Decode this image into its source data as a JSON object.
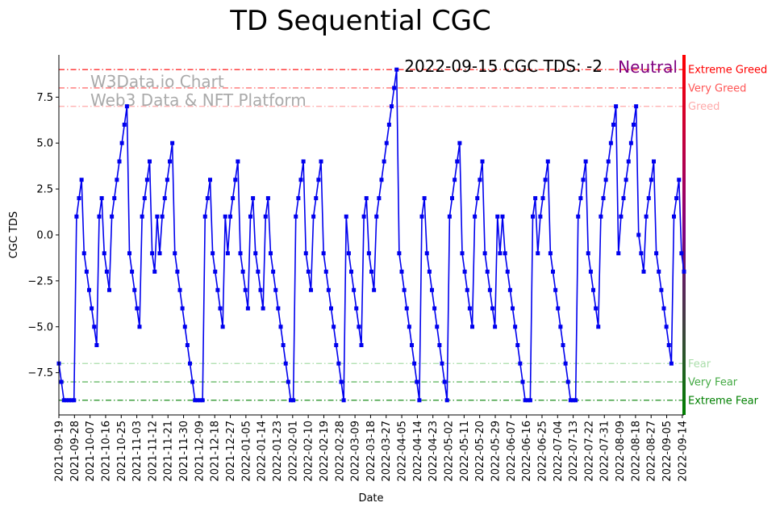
{
  "chart_data": {
    "type": "line",
    "title": "TD Sequential CGC",
    "xlabel": "Date",
    "ylabel": "CGC TDS",
    "ylim": [
      -9.8,
      9.8
    ],
    "yticks": [
      -7.5,
      -5.0,
      -2.5,
      0.0,
      2.5,
      5.0,
      7.5
    ],
    "ytick_labels": [
      "−7.5",
      "−5.0",
      "−2.5",
      "0.0",
      "2.5",
      "5.0",
      "7.5"
    ],
    "x_start": "2021-09-19",
    "x_end": "2022-09-15",
    "xtick_labels": [
      "2021-09-19",
      "2021-09-28",
      "2021-10-07",
      "2021-10-16",
      "2021-10-25",
      "2021-11-03",
      "2021-11-12",
      "2021-11-21",
      "2021-11-30",
      "2021-12-09",
      "2021-12-18",
      "2021-12-27",
      "2022-01-05",
      "2022-01-14",
      "2022-01-23",
      "2022-02-01",
      "2022-02-10",
      "2022-02-19",
      "2022-02-28",
      "2022-03-09",
      "2022-03-18",
      "2022-03-27",
      "2022-04-05",
      "2022-04-14",
      "2022-04-23",
      "2022-05-02",
      "2022-05-11",
      "2022-05-20",
      "2022-05-29",
      "2022-06-07",
      "2022-06-16",
      "2022-06-25",
      "2022-07-04",
      "2022-07-13",
      "2022-07-22",
      "2022-07-31",
      "2022-08-09",
      "2022-08-18",
      "2022-08-27",
      "2022-09-05",
      "2022-09-14"
    ],
    "series": [
      {
        "name": "CGC TDS",
        "color": "#0000ee",
        "values": [
          -7,
          -8,
          -9,
          -9,
          -9,
          -9,
          -9,
          1,
          2,
          3,
          -1,
          -2,
          -3,
          -4,
          -5,
          -6,
          1,
          2,
          -1,
          -2,
          -3,
          1,
          2,
          3,
          4,
          5,
          6,
          7,
          -1,
          -2,
          -3,
          -4,
          -5,
          1,
          2,
          3,
          4,
          -1,
          -2,
          1,
          -1,
          1,
          2,
          3,
          4,
          5,
          -1,
          -2,
          -3,
          -4,
          -5,
          -6,
          -7,
          -8,
          -9,
          -9,
          -9,
          -9,
          1,
          2,
          3,
          -1,
          -2,
          -3,
          -4,
          -5,
          1,
          -1,
          1,
          2,
          3,
          4,
          -1,
          -2,
          -3,
          -4,
          1,
          2,
          -1,
          -2,
          -3,
          -4,
          1,
          2,
          -1,
          -2,
          -3,
          -4,
          -5,
          -6,
          -7,
          -8,
          -9,
          -9,
          1,
          2,
          3,
          4,
          -1,
          -2,
          -3,
          1,
          2,
          3,
          4,
          -1,
          -2,
          -3,
          -4,
          -5,
          -6,
          -7,
          -8,
          -9,
          1,
          -1,
          -2,
          -3,
          -4,
          -5,
          -6,
          1,
          2,
          -1,
          -2,
          -3,
          1,
          2,
          3,
          4,
          5,
          6,
          7,
          8,
          9,
          -1,
          -2,
          -3,
          -4,
          -5,
          -6,
          -7,
          -8,
          -9,
          1,
          2,
          -1,
          -2,
          -3,
          -4,
          -5,
          -6,
          -7,
          -8,
          -9,
          1,
          2,
          3,
          4,
          5,
          -1,
          -2,
          -3,
          -4,
          -5,
          1,
          2,
          3,
          4,
          -1,
          -2,
          -3,
          -4,
          -5,
          1,
          -1,
          1,
          -1,
          -2,
          -3,
          -4,
          -5,
          -6,
          -7,
          -8,
          -9,
          -9,
          -9,
          1,
          2,
          -1,
          1,
          2,
          3,
          4,
          -1,
          -2,
          -3,
          -4,
          -5,
          -6,
          -7,
          -8,
          -9,
          -9,
          -9,
          1,
          2,
          3,
          4,
          -1,
          -2,
          -3,
          -4,
          -5,
          1,
          2,
          3,
          4,
          5,
          6,
          7,
          -1,
          1,
          2,
          3,
          4,
          5,
          6,
          7,
          0,
          -1,
          -2,
          1,
          2,
          3,
          4,
          -1,
          -2,
          -3,
          -4,
          -5,
          -6,
          -7,
          1,
          2,
          3,
          -1,
          -2
        ]
      }
    ],
    "levels": [
      {
        "name": "Extreme Greed",
        "value": 9,
        "color": "#ff0000"
      },
      {
        "name": "Very Greed",
        "value": 8,
        "color": "#ff5555"
      },
      {
        "name": "Greed",
        "value": 7,
        "color": "#ffaaaa"
      },
      {
        "name": "Fear",
        "value": -7,
        "color": "#aaddaa"
      },
      {
        "name": "Very Fear",
        "value": -8,
        "color": "#44aa44"
      },
      {
        "name": "Extreme Fear",
        "value": -9,
        "color": "#008000"
      }
    ],
    "gradient_colors": [
      "#ff0000",
      "#800080",
      "#008000"
    ],
    "annotation": {
      "text": "2022-09-15 CGC TDS: -2",
      "status": "Neutral",
      "status_color": "#800080"
    },
    "watermark": {
      "line1": "W3Data.io Chart",
      "line2": "Web3 Data & NFT Platform"
    }
  }
}
